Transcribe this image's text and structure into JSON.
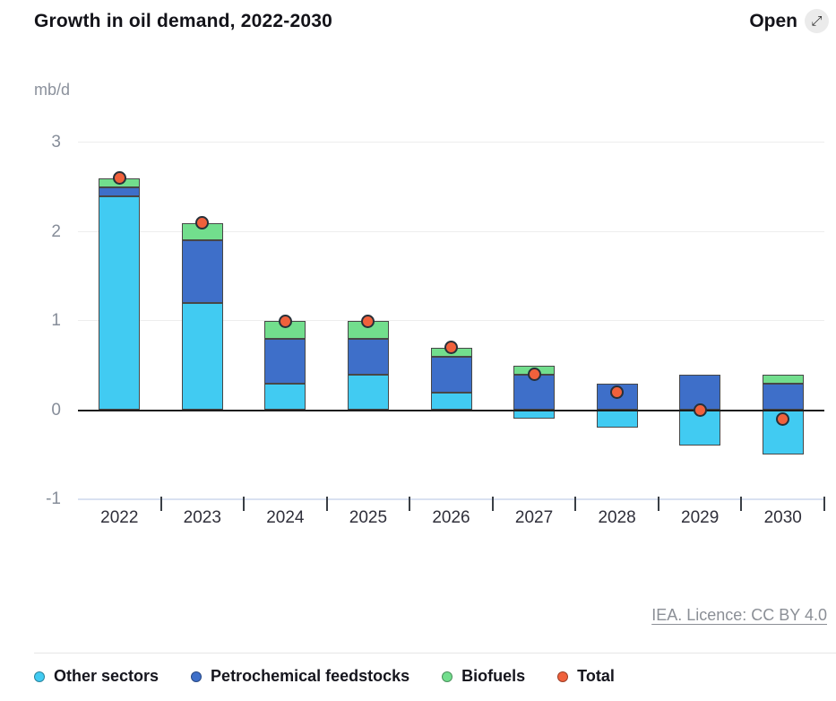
{
  "header": {
    "title": "Growth in oil demand, 2022-2030",
    "open_label": "Open",
    "open_icon": "⤢"
  },
  "chart": {
    "unit_label": "mb/d"
  },
  "chart_data": {
    "type": "bar",
    "subtype": "stacked-bars-with-total-points",
    "title": "Growth in oil demand, 2022-2030",
    "ylabel": "mb/d",
    "xlabel": "",
    "categories": [
      "2022",
      "2023",
      "2024",
      "2025",
      "2026",
      "2027",
      "2028",
      "2029",
      "2030"
    ],
    "series": [
      {
        "name": "Other sectors",
        "color": "#41cbf2",
        "values": [
          2.4,
          1.2,
          0.3,
          0.4,
          0.2,
          -0.1,
          -0.2,
          -0.4,
          -0.5
        ]
      },
      {
        "name": "Petrochemical feedstocks",
        "color": "#3e6fc9",
        "values": [
          0.1,
          0.7,
          0.5,
          0.4,
          0.4,
          0.4,
          0.3,
          0.4,
          0.3
        ]
      },
      {
        "name": "Biofuels",
        "color": "#72de8d",
        "values": [
          0.1,
          0.2,
          0.2,
          0.2,
          0.1,
          0.1,
          0.0,
          0.0,
          0.1
        ]
      }
    ],
    "points_series": {
      "name": "Total",
      "color": "#f0613c",
      "values": [
        2.6,
        2.1,
        1.0,
        1.0,
        0.7,
        0.4,
        0.2,
        0.0,
        -0.1
      ]
    },
    "ylim": [
      -1,
      3
    ],
    "yticks": [
      3,
      2,
      1,
      0,
      -1
    ],
    "grid": "horizontal",
    "legend_position": "bottom"
  },
  "footer": {
    "licence": "IEA. Licence: CC BY 4.0"
  }
}
